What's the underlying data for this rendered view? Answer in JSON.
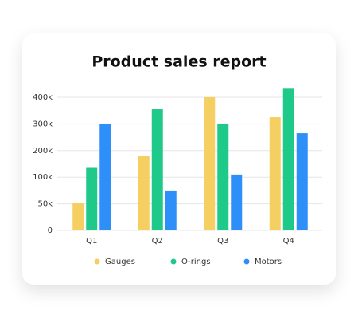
{
  "chart_data": {
    "type": "bar",
    "title": "Product sales report",
    "categories": [
      "Q1",
      "Q2",
      "Q3",
      "Q4"
    ],
    "series": [
      {
        "name": "Gauges",
        "color": "#f5cf62",
        "values": [
          52000,
          180000,
          400000,
          325000
        ]
      },
      {
        "name": "O-rings",
        "color": "#1fc98a",
        "values": [
          135000,
          355000,
          300000,
          435000
        ]
      },
      {
        "name": "Motors",
        "color": "#2f8ff9",
        "values": [
          300000,
          75000,
          110000,
          265000
        ]
      }
    ],
    "ylim": [
      0,
      450000
    ],
    "yticks": [
      0,
      {
        "value": 50000,
        "label": "50k"
      },
      {
        "value": 100000,
        "label": "100k"
      },
      {
        "value": 200000,
        "label": "200k"
      },
      {
        "value": 300000,
        "label": "300k"
      },
      {
        "value": 400000,
        "label": "400k"
      }
    ],
    "grid": true,
    "legend": "bottom"
  }
}
